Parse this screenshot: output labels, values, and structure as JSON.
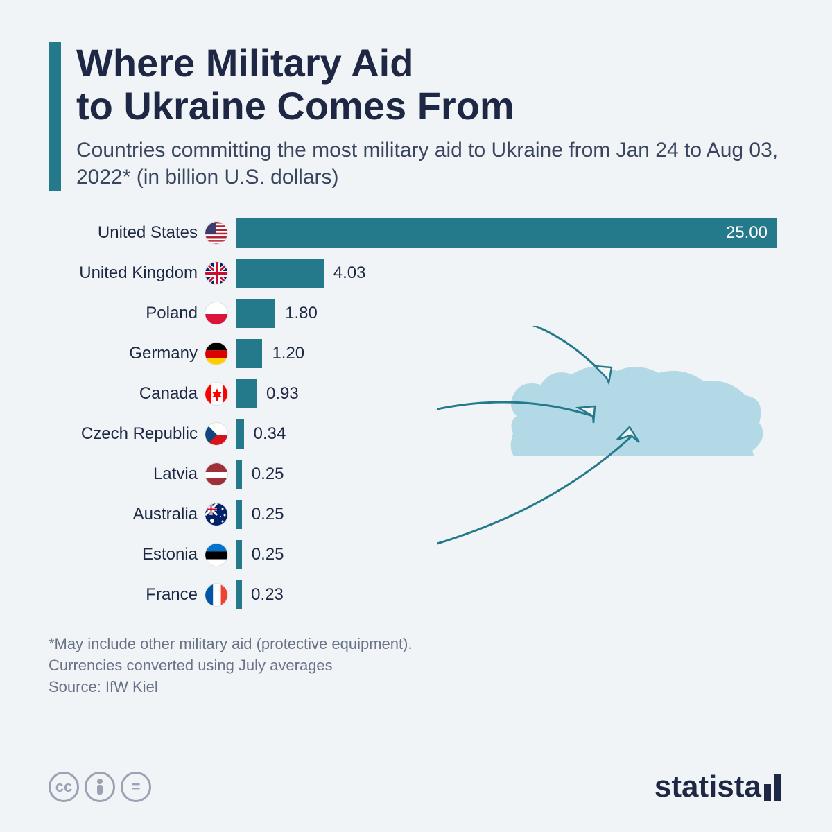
{
  "title_line1": "Where Military Aid",
  "title_line2": "to Ukraine Comes From",
  "subtitle": "Countries committing the most military aid to Ukraine from Jan 24 to Aug 03, 2022* (in billion U.S. dollars)",
  "chart": {
    "type": "bar-horizontal",
    "max_value": 25.0,
    "bar_color": "#247a8a",
    "background_color": "#f0f4f6",
    "label_fontsize": 24,
    "value_fontsize": 24,
    "text_color": "#1e2844",
    "rows": [
      {
        "country": "United States",
        "value": 25.0,
        "value_label": "25.00",
        "label_inside": true,
        "flag": "us"
      },
      {
        "country": "United Kingdom",
        "value": 4.03,
        "value_label": "4.03",
        "label_inside": false,
        "flag": "uk"
      },
      {
        "country": "Poland",
        "value": 1.8,
        "value_label": "1.80",
        "label_inside": false,
        "flag": "pl"
      },
      {
        "country": "Germany",
        "value": 1.2,
        "value_label": "1.20",
        "label_inside": false,
        "flag": "de"
      },
      {
        "country": "Canada",
        "value": 0.93,
        "value_label": "0.93",
        "label_inside": false,
        "flag": "ca"
      },
      {
        "country": "Czech Republic",
        "value": 0.34,
        "value_label": "0.34",
        "label_inside": false,
        "flag": "cz"
      },
      {
        "country": "Latvia",
        "value": 0.25,
        "value_label": "0.25",
        "label_inside": false,
        "flag": "lv"
      },
      {
        "country": "Australia",
        "value": 0.25,
        "value_label": "0.25",
        "label_inside": false,
        "flag": "au"
      },
      {
        "country": "Estonia",
        "value": 0.25,
        "value_label": "0.25",
        "label_inside": false,
        "flag": "ee"
      },
      {
        "country": "France",
        "value": 0.23,
        "value_label": "0.23",
        "label_inside": false,
        "flag": "fr"
      }
    ]
  },
  "map": {
    "top_color": "#b3d9e6",
    "bottom_color": "#f0e493",
    "arrow_color": "#247a8a"
  },
  "footnote_line1": "*May include other military aid (protective equipment).",
  "footnote_line2": "Currencies converted using July averages",
  "source_label": "Source: IfW Kiel",
  "brand": "statista",
  "colors": {
    "accent": "#247a8a",
    "title": "#1e2844",
    "subtitle": "#3a4560",
    "footnote": "#6a7288",
    "icon_grey": "#9aa2b4"
  },
  "flags": {
    "us": {
      "stripes": [
        "#b22234",
        "#ffffff"
      ],
      "canton": "#3c3b6e"
    },
    "uk": {
      "bg": "#012169",
      "cross": "#ffffff",
      "cross2": "#c8102e"
    },
    "pl": {
      "top": "#ffffff",
      "bottom": "#dc143c"
    },
    "de": {
      "top": "#000000",
      "mid": "#dd0000",
      "bottom": "#ffce00"
    },
    "ca": {
      "bg": "#ffffff",
      "side": "#ff0000"
    },
    "cz": {
      "top": "#ffffff",
      "bottom": "#d7141a",
      "tri": "#11457e"
    },
    "lv": {
      "top": "#9e3039",
      "mid": "#ffffff",
      "bottom": "#9e3039"
    },
    "au": {
      "bg": "#012169",
      "star": "#ffffff"
    },
    "ee": {
      "top": "#0072ce",
      "mid": "#000000",
      "bottom": "#ffffff"
    },
    "fr": {
      "left": "#0055a4",
      "mid": "#ffffff",
      "right": "#ef4135"
    }
  }
}
